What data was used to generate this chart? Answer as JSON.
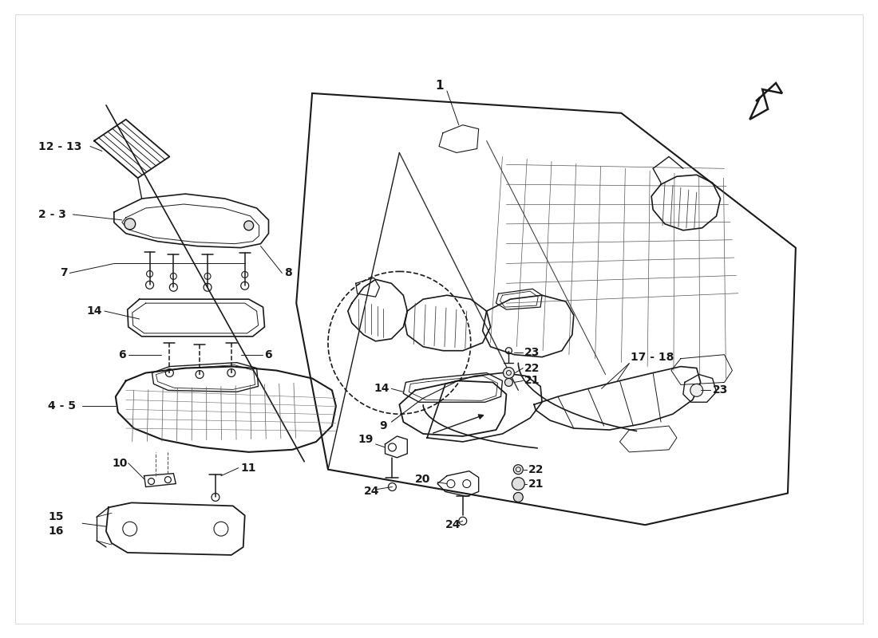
{
  "bg_color": "#ffffff",
  "line_color": "#1a1a1a",
  "label_color": "#1a1a1a",
  "figsize": [
    11.0,
    8.0
  ],
  "dpi": 100
}
